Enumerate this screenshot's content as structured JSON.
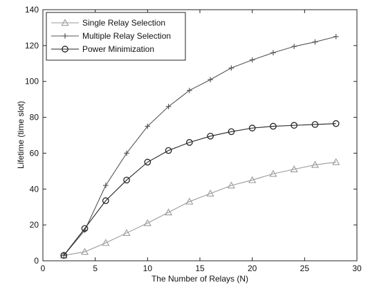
{
  "chart_data": {
    "type": "line",
    "title": "",
    "xlabel": "The Number of Relays (N)",
    "ylabel": "Lifetime (time slot)",
    "xlim": [
      0,
      30
    ],
    "ylim": [
      0,
      140
    ],
    "xticks": [
      0,
      5,
      10,
      15,
      20,
      25,
      30
    ],
    "yticks": [
      0,
      20,
      40,
      60,
      80,
      100,
      120,
      140
    ],
    "grid": false,
    "legend_position": "top-left",
    "x": [
      2,
      4,
      6,
      8,
      10,
      12,
      14,
      16,
      18,
      20,
      22,
      24,
      26,
      28
    ],
    "series": [
      {
        "name": "Single Relay Selection",
        "marker": "triangle",
        "color": "#9a9a9a",
        "values": [
          3,
          5,
          10,
          15.5,
          21,
          27,
          33,
          37.5,
          42,
          45,
          48.5,
          51,
          53.5,
          55
        ]
      },
      {
        "name": "Multiple Relay Selection",
        "marker": "plus",
        "color": "#555555",
        "values": [
          3,
          17,
          42,
          60,
          75,
          86,
          95,
          101,
          107.5,
          112,
          116,
          119.5,
          122,
          125
        ]
      },
      {
        "name": "Power Minimization",
        "marker": "circle",
        "color": "#222222",
        "values": [
          3,
          18,
          33.5,
          45,
          55,
          61.5,
          66,
          69.5,
          72,
          74,
          75,
          75.5,
          76,
          76.5
        ]
      }
    ]
  }
}
